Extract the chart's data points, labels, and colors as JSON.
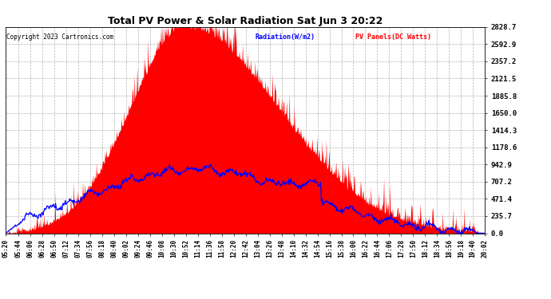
{
  "title": "Total PV Power & Solar Radiation Sat Jun 3 20:22",
  "copyright": "Copyright 2023 Cartronics.com",
  "legend_radiation": "Radiation(W/m2)",
  "legend_pv": "PV Panels(DC Watts)",
  "yticks": [
    0.0,
    235.7,
    471.4,
    707.2,
    942.9,
    1178.6,
    1414.3,
    1650.0,
    1885.8,
    2121.5,
    2357.2,
    2592.9,
    2828.7
  ],
  "ymax": 2828.7,
  "ymin": 0.0,
  "bg_color": "#ffffff",
  "grid_color": "#aaaaaa",
  "pv_color": "#ff0000",
  "radiation_color": "#0000ff",
  "title_color": "#000000",
  "copyright_color": "#000000",
  "xtick_labels": [
    "05:20",
    "05:44",
    "06:06",
    "06:28",
    "06:50",
    "07:12",
    "07:34",
    "07:56",
    "08:18",
    "08:40",
    "09:02",
    "09:24",
    "09:46",
    "10:08",
    "10:30",
    "10:52",
    "11:14",
    "11:36",
    "11:58",
    "12:20",
    "12:42",
    "13:04",
    "13:26",
    "13:48",
    "14:10",
    "14:32",
    "14:54",
    "15:16",
    "15:38",
    "16:00",
    "16:22",
    "16:44",
    "17:06",
    "17:28",
    "17:50",
    "18:12",
    "18:34",
    "18:56",
    "19:18",
    "19:40",
    "20:02"
  ],
  "figsize": [
    6.9,
    3.75
  ],
  "dpi": 100
}
